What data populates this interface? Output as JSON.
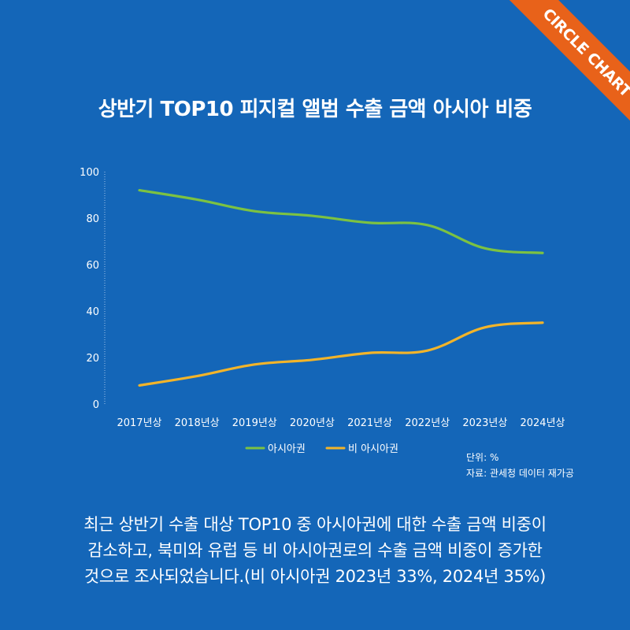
{
  "badge": "CIRCLE CHART",
  "chart_data": {
    "type": "line",
    "title": "상반기 TOP10 피지컬 앨범 수출 금액 아시아 비중",
    "categories": [
      "2017년상",
      "2018년상",
      "2019년상",
      "2020년상",
      "2021년상",
      "2022년상",
      "2023년상",
      "2024년상"
    ],
    "series": [
      {
        "name": "아시아권",
        "color": "#7cc242",
        "values": [
          92,
          88,
          83,
          81,
          78,
          77,
          67,
          65
        ]
      },
      {
        "name": "비 아시아권",
        "color": "#f2b42a",
        "values": [
          8,
          12,
          17,
          19,
          22,
          23,
          33,
          35
        ]
      }
    ],
    "ylim": [
      0,
      100
    ],
    "yticks": [
      "0",
      "20",
      "40",
      "60",
      "80",
      "100"
    ],
    "grid": false,
    "legend": "bottom-center"
  },
  "notes": {
    "unit": "단위: %",
    "source": "자료: 관세청 데이터 재가공"
  },
  "description": [
    "최근 상반기 수출 대상 TOP10 중 아시아권에 대한 수출 금액 비중이",
    "감소하고, 북미와 유럽 등 비 아시아권로의 수출 금액 비중이 증가한",
    "것으로 조사되었습니다.(비 아시아권 2023년 33%, 2024년 35%)"
  ]
}
